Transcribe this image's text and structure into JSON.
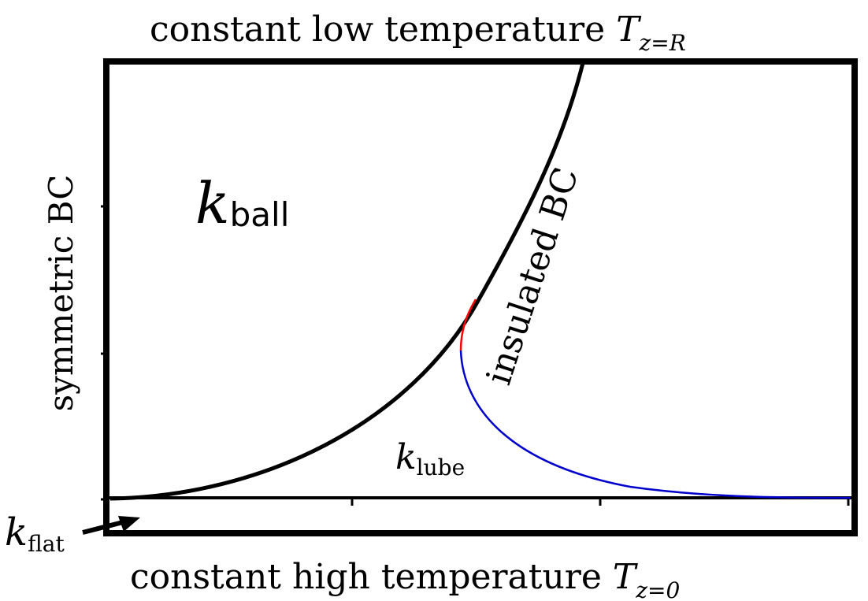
{
  "labels": {
    "top": "constant low temperature ",
    "top_var": "T",
    "top_sub": "z=R",
    "bottom": "constant high temperature ",
    "bottom_var": "T",
    "bottom_sub": "z=0",
    "left": "symmetric BC",
    "right_curve": "insulated BC",
    "k_ball": "k",
    "k_ball_sub": "ball",
    "k_lube": "k",
    "k_lube_sub": "lube",
    "k_flat": "k",
    "k_flat_sub": "flat"
  },
  "colors": {
    "frame": "#000000",
    "ball_curve": "#000000",
    "lube_curve_upper": "#ff0000",
    "lube_curve_lower": "#0000cc"
  }
}
